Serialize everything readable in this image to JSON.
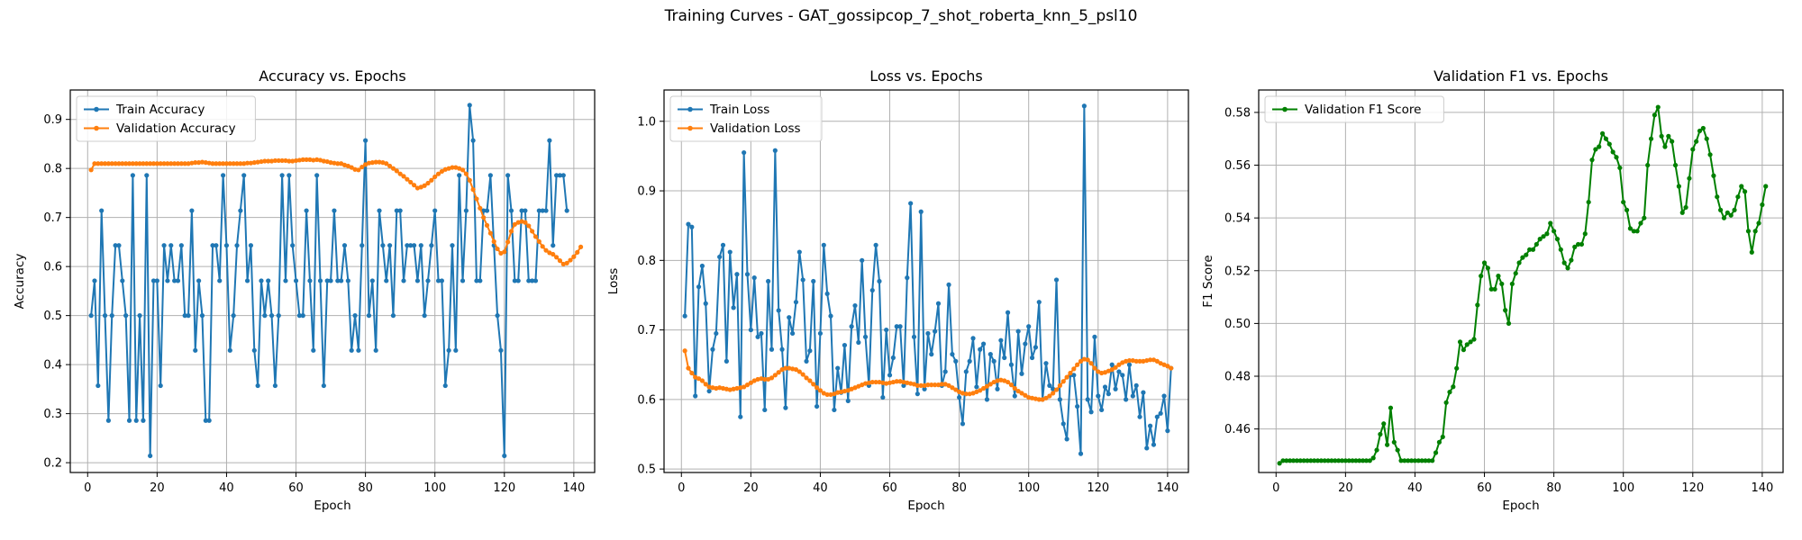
{
  "suptitle": "Training Curves - GAT_gossipcop_7_shot_roberta_knn_5_psl10",
  "colors": {
    "blue": "#1f77b4",
    "orange": "#ff7f0e",
    "green": "#008000",
    "grid": "#b0b0b0"
  },
  "chart_data": [
    {
      "type": "line",
      "title": "Accuracy vs. Epochs",
      "xlabel": "Epoch",
      "ylabel": "Accuracy",
      "xlim": [
        -5,
        146
      ],
      "ylim": [
        0.18,
        0.96
      ],
      "xticks": [
        0,
        20,
        40,
        60,
        80,
        100,
        120,
        140
      ],
      "yticks": [
        0.2,
        0.3,
        0.4,
        0.5,
        0.6,
        0.7,
        0.8,
        0.9
      ],
      "grid": true,
      "legend": "upper-left",
      "series": [
        {
          "name": "Train Accuracy",
          "color": "#1f77b4",
          "y": [
            0.5,
            0.571,
            0.357,
            0.714,
            0.5,
            0.286,
            0.5,
            0.643,
            0.643,
            0.571,
            0.5,
            0.286,
            0.786,
            0.286,
            0.5,
            0.286,
            0.786,
            0.214,
            0.571,
            0.571,
            0.357,
            0.643,
            0.571,
            0.643,
            0.571,
            0.571,
            0.643,
            0.5,
            0.5,
            0.714,
            0.429,
            0.571,
            0.5,
            0.286,
            0.286,
            0.643,
            0.643,
            0.571,
            0.786,
            0.643,
            0.429,
            0.5,
            0.643,
            0.714,
            0.786,
            0.571,
            0.643,
            0.429,
            0.357,
            0.571,
            0.5,
            0.571,
            0.5,
            0.357,
            0.5,
            0.786,
            0.571,
            0.786,
            0.643,
            0.571,
            0.5,
            0.5,
            0.714,
            0.571,
            0.429,
            0.786,
            0.571,
            0.357,
            0.571,
            0.571,
            0.714,
            0.571,
            0.571,
            0.643,
            0.571,
            0.429,
            0.5,
            0.429,
            0.643,
            0.857,
            0.5,
            0.571,
            0.429,
            0.714,
            0.643,
            0.571,
            0.643,
            0.5,
            0.714,
            0.714,
            0.571,
            0.643,
            0.643,
            0.643,
            0.571,
            0.643,
            0.5,
            0.571,
            0.643,
            0.714,
            0.571,
            0.571,
            0.357,
            0.429,
            0.643,
            0.429,
            0.786,
            0.571,
            0.714,
            0.929,
            0.857,
            0.571,
            0.571,
            0.714,
            0.714,
            0.786,
            0.643,
            0.5,
            0.429,
            0.214,
            0.786,
            0.714,
            0.571,
            0.571,
            0.714,
            0.714,
            0.571,
            0.571,
            0.571,
            0.714,
            0.714,
            0.714,
            0.857,
            0.643,
            0.786,
            0.786,
            0.786,
            0.714
          ]
        },
        {
          "name": "Validation Accuracy",
          "color": "#ff7f0e",
          "y": [
            0.797,
            0.81,
            0.81,
            0.81,
            0.81,
            0.81,
            0.81,
            0.81,
            0.81,
            0.81,
            0.81,
            0.81,
            0.81,
            0.81,
            0.81,
            0.81,
            0.81,
            0.81,
            0.81,
            0.81,
            0.81,
            0.81,
            0.81,
            0.81,
            0.81,
            0.81,
            0.81,
            0.81,
            0.81,
            0.811,
            0.812,
            0.812,
            0.813,
            0.812,
            0.811,
            0.81,
            0.81,
            0.81,
            0.81,
            0.81,
            0.81,
            0.81,
            0.81,
            0.81,
            0.81,
            0.811,
            0.811,
            0.812,
            0.813,
            0.814,
            0.815,
            0.815,
            0.815,
            0.816,
            0.816,
            0.816,
            0.816,
            0.815,
            0.815,
            0.816,
            0.817,
            0.818,
            0.818,
            0.818,
            0.817,
            0.818,
            0.817,
            0.815,
            0.814,
            0.812,
            0.811,
            0.81,
            0.81,
            0.807,
            0.805,
            0.802,
            0.798,
            0.797,
            0.803,
            0.808,
            0.811,
            0.812,
            0.813,
            0.813,
            0.812,
            0.81,
            0.805,
            0.8,
            0.795,
            0.789,
            0.784,
            0.778,
            0.772,
            0.766,
            0.76,
            0.762,
            0.765,
            0.77,
            0.776,
            0.783,
            0.789,
            0.794,
            0.798,
            0.8,
            0.802,
            0.802,
            0.8,
            0.797,
            0.789,
            0.776,
            0.757,
            0.738,
            0.719,
            0.7,
            0.684,
            0.668,
            0.651,
            0.636,
            0.627,
            0.63,
            0.65,
            0.672,
            0.686,
            0.69,
            0.692,
            0.69,
            0.683,
            0.672,
            0.661,
            0.651,
            0.641,
            0.633,
            0.628,
            0.625,
            0.619,
            0.612,
            0.605,
            0.607,
            0.613,
            0.62,
            0.629,
            0.64
          ]
        }
      ]
    },
    {
      "type": "line",
      "title": "Loss vs. Epochs",
      "xlabel": "Epoch",
      "ylabel": "Loss",
      "xlim": [
        -5,
        146
      ],
      "ylim": [
        0.495,
        1.045
      ],
      "xticks": [
        0,
        20,
        40,
        60,
        80,
        100,
        120,
        140
      ],
      "yticks": [
        0.5,
        0.6,
        0.7,
        0.8,
        0.9,
        1.0
      ],
      "ytick_labels": [
        "0.5",
        "0.6",
        "0.7",
        "0.8",
        "0.9",
        "1.0"
      ],
      "grid": true,
      "legend": "upper-left",
      "series": [
        {
          "name": "Train Loss",
          "color": "#1f77b4",
          "y": [
            0.72,
            0.852,
            0.848,
            0.605,
            0.762,
            0.792,
            0.738,
            0.612,
            0.672,
            0.695,
            0.805,
            0.822,
            0.655,
            0.812,
            0.732,
            0.78,
            0.575,
            0.955,
            0.78,
            0.7,
            0.775,
            0.69,
            0.695,
            0.585,
            0.77,
            0.672,
            0.958,
            0.728,
            0.672,
            0.588,
            0.718,
            0.695,
            0.74,
            0.812,
            0.772,
            0.655,
            0.67,
            0.77,
            0.59,
            0.695,
            0.822,
            0.752,
            0.72,
            0.585,
            0.645,
            0.61,
            0.678,
            0.598,
            0.705,
            0.735,
            0.682,
            0.8,
            0.69,
            0.62,
            0.757,
            0.822,
            0.77,
            0.603,
            0.7,
            0.635,
            0.66,
            0.705,
            0.705,
            0.62,
            0.775,
            0.882,
            0.69,
            0.608,
            0.87,
            0.615,
            0.695,
            0.665,
            0.698,
            0.738,
            0.62,
            0.64,
            0.765,
            0.665,
            0.655,
            0.603,
            0.565,
            0.64,
            0.655,
            0.688,
            0.618,
            0.672,
            0.68,
            0.6,
            0.665,
            0.655,
            0.615,
            0.685,
            0.66,
            0.725,
            0.65,
            0.605,
            0.698,
            0.637,
            0.68,
            0.705,
            0.66,
            0.675,
            0.74,
            0.6,
            0.652,
            0.62,
            0.615,
            0.772,
            0.6,
            0.565,
            0.543,
            0.635,
            0.635,
            0.59,
            0.522,
            1.022,
            0.6,
            0.582,
            0.69,
            0.605,
            0.585,
            0.618,
            0.608,
            0.65,
            0.615,
            0.64,
            0.635,
            0.6,
            0.65,
            0.605,
            0.62,
            0.575,
            0.61,
            0.53,
            0.562,
            0.535,
            0.575,
            0.58,
            0.605,
            0.555,
            0.645
          ]
        },
        {
          "name": "Validation Loss",
          "color": "#ff7f0e",
          "y": [
            0.67,
            0.645,
            0.638,
            0.632,
            0.63,
            0.627,
            0.622,
            0.618,
            0.617,
            0.616,
            0.617,
            0.616,
            0.615,
            0.614,
            0.615,
            0.616,
            0.617,
            0.618,
            0.621,
            0.624,
            0.627,
            0.629,
            0.63,
            0.629,
            0.629,
            0.631,
            0.635,
            0.639,
            0.643,
            0.645,
            0.645,
            0.644,
            0.643,
            0.64,
            0.636,
            0.631,
            0.627,
            0.622,
            0.617,
            0.613,
            0.609,
            0.607,
            0.607,
            0.608,
            0.61,
            0.611,
            0.612,
            0.613,
            0.615,
            0.617,
            0.619,
            0.621,
            0.623,
            0.624,
            0.625,
            0.625,
            0.625,
            0.624,
            0.623,
            0.624,
            0.625,
            0.626,
            0.626,
            0.625,
            0.624,
            0.623,
            0.622,
            0.62,
            0.62,
            0.62,
            0.621,
            0.621,
            0.621,
            0.621,
            0.622,
            0.622,
            0.62,
            0.617,
            0.614,
            0.611,
            0.609,
            0.608,
            0.608,
            0.609,
            0.611,
            0.613,
            0.616,
            0.619,
            0.622,
            0.625,
            0.627,
            0.628,
            0.627,
            0.625,
            0.621,
            0.616,
            0.612,
            0.609,
            0.606,
            0.603,
            0.602,
            0.601,
            0.6,
            0.6,
            0.602,
            0.605,
            0.609,
            0.614,
            0.62,
            0.626,
            0.632,
            0.638,
            0.644,
            0.65,
            0.655,
            0.658,
            0.657,
            0.652,
            0.645,
            0.64,
            0.638,
            0.639,
            0.641,
            0.643,
            0.646,
            0.65,
            0.653,
            0.655,
            0.656,
            0.656,
            0.655,
            0.655,
            0.655,
            0.656,
            0.657,
            0.657,
            0.655,
            0.652,
            0.65,
            0.648,
            0.645
          ]
        }
      ]
    },
    {
      "type": "line",
      "title": "Validation F1 vs. Epochs",
      "xlabel": "Epoch",
      "ylabel": "F1 Score",
      "xlim": [
        -5,
        146
      ],
      "ylim": [
        0.4435,
        0.5885
      ],
      "xticks": [
        0,
        20,
        40,
        60,
        80,
        100,
        120,
        140
      ],
      "yticks": [
        0.46,
        0.48,
        0.5,
        0.52,
        0.54,
        0.56,
        0.58
      ],
      "ytick_labels": [
        "0.46",
        "0.48",
        "0.50",
        "0.52",
        "0.54",
        "0.56",
        "0.58"
      ],
      "grid": true,
      "legend": "upper-left",
      "series": [
        {
          "name": "Validation F1 Score",
          "color": "#008000",
          "y": [
            0.447,
            0.448,
            0.448,
            0.448,
            0.448,
            0.448,
            0.448,
            0.448,
            0.448,
            0.448,
            0.448,
            0.448,
            0.448,
            0.448,
            0.448,
            0.448,
            0.448,
            0.448,
            0.448,
            0.448,
            0.448,
            0.448,
            0.448,
            0.448,
            0.448,
            0.448,
            0.448,
            0.449,
            0.452,
            0.458,
            0.462,
            0.454,
            0.468,
            0.455,
            0.452,
            0.448,
            0.448,
            0.448,
            0.448,
            0.448,
            0.448,
            0.448,
            0.448,
            0.448,
            0.448,
            0.451,
            0.455,
            0.457,
            0.47,
            0.474,
            0.476,
            0.483,
            0.493,
            0.49,
            0.492,
            0.493,
            0.494,
            0.507,
            0.518,
            0.523,
            0.521,
            0.513,
            0.513,
            0.518,
            0.515,
            0.505,
            0.5,
            0.515,
            0.519,
            0.523,
            0.525,
            0.526,
            0.528,
            0.528,
            0.53,
            0.532,
            0.533,
            0.534,
            0.538,
            0.535,
            0.532,
            0.528,
            0.523,
            0.521,
            0.524,
            0.529,
            0.53,
            0.53,
            0.534,
            0.546,
            0.562,
            0.566,
            0.567,
            0.572,
            0.57,
            0.568,
            0.565,
            0.563,
            0.559,
            0.546,
            0.543,
            0.536,
            0.535,
            0.535,
            0.538,
            0.54,
            0.56,
            0.57,
            0.579,
            0.582,
            0.571,
            0.567,
            0.571,
            0.569,
            0.56,
            0.552,
            0.542,
            0.544,
            0.555,
            0.566,
            0.569,
            0.573,
            0.574,
            0.57,
            0.564,
            0.556,
            0.548,
            0.543,
            0.54,
            0.542,
            0.541,
            0.543,
            0.548,
            0.552,
            0.55,
            0.535,
            0.527,
            0.535,
            0.538,
            0.545,
            0.552
          ]
        }
      ]
    }
  ]
}
